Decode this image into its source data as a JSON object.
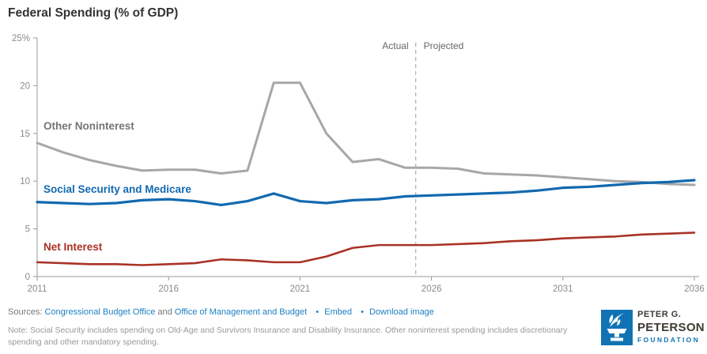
{
  "title": "Federal Spending (% of GDP)",
  "colors": {
    "other_noninterest": "#a7a7a7",
    "social_security_medicare": "#1269af",
    "net_interest": "#a93226",
    "link_blue": "#1d80c3",
    "logo_blue": "#1173b4",
    "axis_gray": "#999999"
  },
  "chart_data": {
    "type": "line",
    "title": "Federal Spending (% of GDP)",
    "x": [
      2011,
      2012,
      2013,
      2014,
      2015,
      2016,
      2017,
      2018,
      2019,
      2020,
      2021,
      2022,
      2023,
      2024,
      2025,
      2026,
      2027,
      2028,
      2029,
      2030,
      2031,
      2032,
      2033,
      2034,
      2035,
      2036
    ],
    "series": [
      {
        "name": "Other Noninterest",
        "color": "#a7a7a7",
        "label_color": "#757575",
        "values": [
          14.0,
          13.0,
          12.2,
          11.6,
          11.1,
          11.2,
          11.2,
          10.8,
          11.1,
          20.3,
          20.3,
          15.0,
          12.0,
          12.3,
          11.4,
          11.4,
          11.3,
          10.8,
          10.7,
          10.6,
          10.4,
          10.2,
          10.0,
          9.9,
          9.7,
          9.6
        ]
      },
      {
        "name": "Social Security and Medicare",
        "color": "#1269af",
        "label_color": "#1269af",
        "values": [
          7.8,
          7.7,
          7.6,
          7.7,
          8.0,
          8.1,
          7.9,
          7.5,
          7.9,
          8.7,
          7.9,
          7.7,
          8.0,
          8.1,
          8.4,
          8.5,
          8.6,
          8.7,
          8.8,
          9.0,
          9.3,
          9.4,
          9.6,
          9.8,
          9.9,
          10.1
        ]
      },
      {
        "name": "Net Interest",
        "color": "#a93226",
        "label_color": "#a93226",
        "values": [
          1.5,
          1.4,
          1.3,
          1.3,
          1.2,
          1.3,
          1.4,
          1.8,
          1.7,
          1.5,
          1.5,
          2.1,
          3.0,
          3.3,
          3.3,
          3.3,
          3.4,
          3.5,
          3.7,
          3.8,
          4.0,
          4.1,
          4.2,
          4.4,
          4.5,
          4.6
        ]
      }
    ],
    "ylim": [
      0,
      25
    ],
    "yticks": [
      0,
      5,
      10,
      15,
      20,
      25
    ],
    "ytick_labels": [
      "0",
      "5",
      "10",
      "15",
      "20",
      "25%"
    ],
    "xticks": [
      2011,
      2016,
      2021,
      2026,
      2031,
      2036
    ],
    "grid": false,
    "legend": "inline-labels",
    "divider": {
      "x": 2025.4,
      "left_label": "Actual",
      "right_label": "Projected"
    }
  },
  "footer": {
    "sources_prefix": "Sources:",
    "source_link_1": "Congressional Budget Office",
    "joiner": "and",
    "source_link_2": "Office of Management and Budget",
    "bullet": "•",
    "action_embed": "Embed",
    "action_download": "Download image",
    "note": "Note: Social Security includes spending on Old-Age and Survivors Insurance and Disability Insurance. Other noninterest spending includes discretionary spending and other mandatory spending."
  },
  "logo": {
    "line1": "PETER G.",
    "line2": "PETERSON",
    "line3": "FOUNDATION"
  }
}
